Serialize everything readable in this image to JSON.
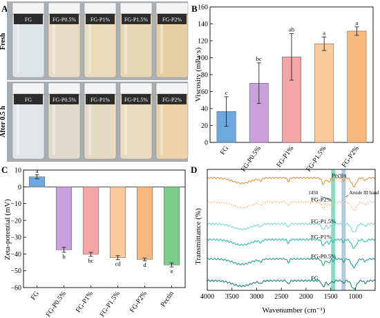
{
  "panels": {
    "A": {
      "label": "A",
      "rows": [
        {
          "label": "Fresh",
          "vials": [
            "FG",
            "FG-P0.5%",
            "FG-P1%",
            "FG-P1.5%",
            "FG-P2%"
          ]
        },
        {
          "label": "After 0.5 h",
          "vials": [
            "FG",
            "FG-P0.5%",
            "FG-P1%",
            "FG-P1.5%",
            "FG-P2%"
          ]
        }
      ],
      "vial_colors": {
        "Fresh": [
          "#dfe4e6",
          "#e8dcc4",
          "#eadcbc",
          "#e9d6b2",
          "#e6cfa2"
        ],
        "After 0.5 h": [
          "#e3e6e8",
          "#e0dccd",
          "#e5dbc5",
          "#eadcc0",
          "#ecd4a8"
        ]
      }
    }
  },
  "chart_data": [
    {
      "panel": "B",
      "type": "bar",
      "categories": [
        "FG",
        "FG-P0.5%",
        "FG-P1%",
        "FG-P1.5%",
        "FG-P2%"
      ],
      "values": [
        36.5,
        70,
        101,
        116.5,
        131.5
      ],
      "errors": [
        17.5,
        24,
        27.5,
        8,
        5
      ],
      "sig_letters": [
        "c",
        "bc",
        "ab",
        "a",
        "a"
      ],
      "colors": [
        "#6fa8dc",
        "#c9a0dc",
        "#f4a6a6",
        "#f9c99b",
        "#f8b77c"
      ],
      "ylabel": "Viscosity (mPa·s)",
      "xlabel": "",
      "ylim": [
        0,
        160
      ],
      "yticks": [
        0,
        20,
        40,
        60,
        80,
        100,
        120,
        140,
        160
      ]
    },
    {
      "panel": "C",
      "type": "bar",
      "categories": [
        "FG",
        "FG-P0.5%",
        "FG-P1%",
        "FG-P1.5%",
        "FG-P2%",
        "Pectin"
      ],
      "values": [
        6,
        -37.5,
        -40.2,
        -42.2,
        -43.2,
        -46.5
      ],
      "errors": [
        1.2,
        1.5,
        1.2,
        1.2,
        0.8,
        1.2
      ],
      "sig_letters": [
        "a",
        "b",
        "bc",
        "cd",
        "d",
        "e"
      ],
      "colors": [
        "#6fa8dc",
        "#c9a0dc",
        "#f4a6a6",
        "#f9c99b",
        "#f8b77c",
        "#7dcc8e"
      ],
      "ylabel": "Zeta-potential (mV)",
      "xlabel": "",
      "ylim": [
        -60,
        10
      ],
      "yticks": [
        10,
        0,
        -10,
        -20,
        -30,
        -40,
        -50,
        -60
      ]
    },
    {
      "panel": "D",
      "type": "line",
      "xlabel": "Wavenumber (cm⁻¹)",
      "ylabel": "Transmittance (%)",
      "xlim": [
        4000,
        600
      ],
      "xticks": [
        4000,
        3500,
        3000,
        2500,
        2000,
        1500,
        1000
      ],
      "annotations": [
        "1450",
        "Amide III band"
      ],
      "band_positions": [
        1450,
        1240
      ],
      "band_colors": [
        "#5fd3b3",
        "#9ab8d8"
      ],
      "series": [
        {
          "name": "Pectin",
          "color": "#e8943a",
          "offset": 0.93
        },
        {
          "name": "FG-P2%",
          "color": "#f2b877",
          "offset": 0.73
        },
        {
          "name": "FG-P1.5%",
          "color": "#7fd8d0",
          "offset": 0.55
        },
        {
          "name": "FG-P1%",
          "color": "#2bbfa8",
          "offset": 0.42
        },
        {
          "name": "FG-P0.5%",
          "color": "#239e92",
          "offset": 0.26
        },
        {
          "name": "FG",
          "color": "#1f7f73",
          "offset": 0.08
        }
      ]
    }
  ]
}
